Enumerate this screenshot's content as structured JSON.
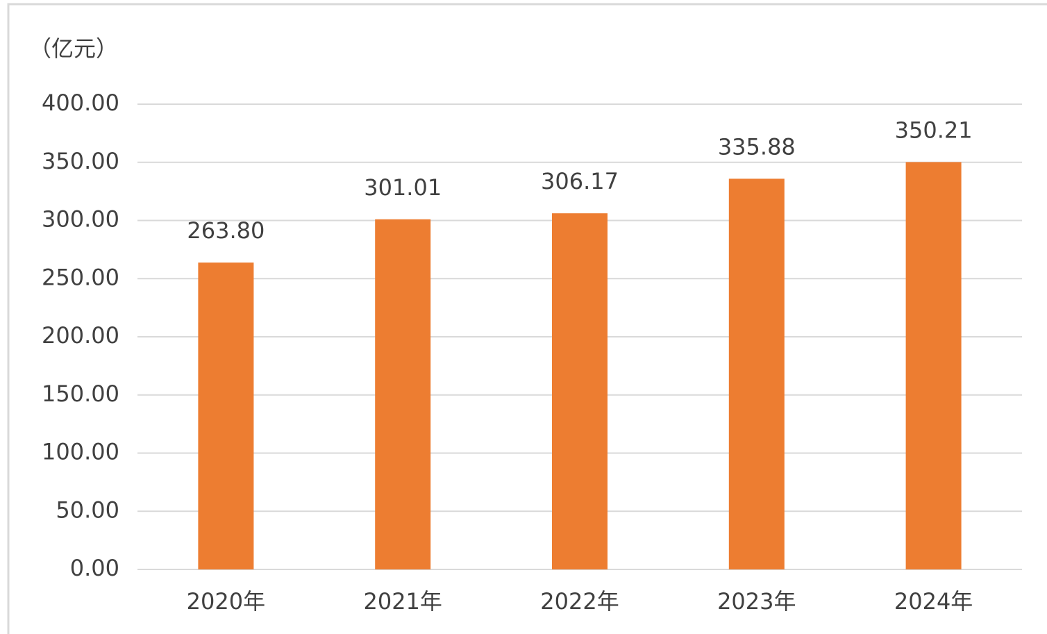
{
  "chart_data": {
    "type": "bar",
    "y_label": "（亿元）",
    "categories": [
      "2020年",
      "2021年",
      "2022年",
      "2023年",
      "2024年"
    ],
    "values": [
      263.8,
      301.01,
      306.17,
      335.88,
      350.21
    ],
    "value_labels": [
      "263.80",
      "301.01",
      "306.17",
      "335.88",
      "350.21"
    ],
    "color": "#ed7d31",
    "ylim": [
      0,
      400
    ],
    "yticks": [
      {
        "value": 0,
        "label": "0.00"
      },
      {
        "value": 50,
        "label": "50.00"
      },
      {
        "value": 100,
        "label": "100.00"
      },
      {
        "value": 150,
        "label": "150.00"
      },
      {
        "value": 200,
        "label": "200.00"
      },
      {
        "value": 250,
        "label": "250.00"
      },
      {
        "value": 300,
        "label": "300.00"
      },
      {
        "value": 350,
        "label": "350.00"
      },
      {
        "value": 400,
        "label": "400.00"
      }
    ],
    "grid": true
  }
}
